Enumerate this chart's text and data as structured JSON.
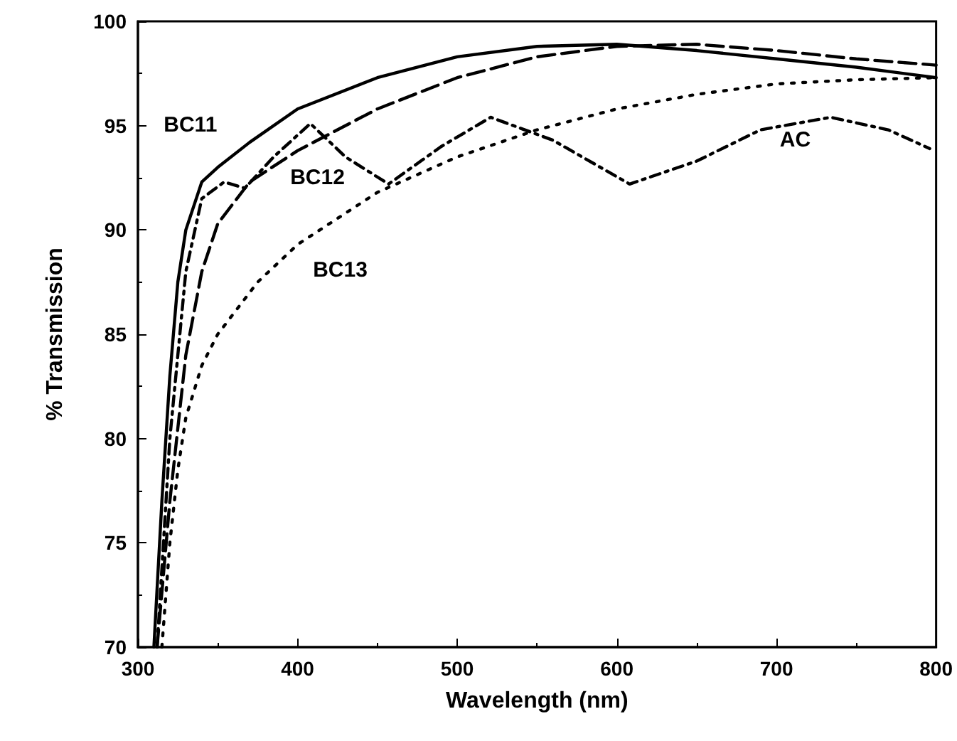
{
  "chart_data": {
    "type": "line",
    "xlabel": "Wavelength (nm)",
    "ylabel": "% Transmission",
    "xlim": [
      300,
      800
    ],
    "xticks": [
      300,
      400,
      500,
      600,
      700,
      800
    ],
    "ylim": [
      70,
      100
    ],
    "yticks": [
      70,
      75,
      80,
      85,
      90,
      95,
      100
    ],
    "grid": false,
    "marker": "none",
    "series": [
      {
        "name": "BC11",
        "color": "#000000",
        "line_style": "solid",
        "x": [
          310,
          315,
          320,
          325,
          330,
          340,
          350,
          370,
          400,
          450,
          500,
          550,
          600,
          650,
          700,
          750,
          800
        ],
        "values": [
          70,
          77,
          83,
          87.5,
          90,
          92.3,
          93,
          94.2,
          95.8,
          97.3,
          98.3,
          98.8,
          98.9,
          98.6,
          98.2,
          97.8,
          97.3
        ]
      },
      {
        "name": "BC12",
        "color": "#000000",
        "line_style": "dashed",
        "x": [
          312,
          320,
          330,
          340,
          350,
          370,
          400,
          450,
          500,
          550,
          600,
          650,
          700,
          750,
          800
        ],
        "values": [
          70,
          77,
          84,
          88,
          90.3,
          92.3,
          93.8,
          95.8,
          97.3,
          98.3,
          98.8,
          98.9,
          98.6,
          98.2,
          97.9
        ]
      },
      {
        "name": "AC",
        "color": "#000000",
        "line_style": "dashdot",
        "x": [
          312,
          320,
          330,
          340,
          354,
          367,
          385,
          408,
          430,
          457,
          490,
          521,
          560,
          608,
          650,
          690,
          734,
          770,
          796
        ],
        "values": [
          70,
          80,
          88,
          91.5,
          92.3,
          92,
          93.5,
          95.1,
          93.5,
          92.2,
          94,
          95.4,
          94.3,
          92.2,
          93.3,
          94.8,
          95.4,
          94.8,
          93.9
        ]
      },
      {
        "name": "BC13",
        "color": "#000000",
        "line_style": "dotted",
        "x": [
          315,
          320,
          325,
          330,
          340,
          350,
          375,
          400,
          450,
          500,
          550,
          600,
          650,
          700,
          750,
          800
        ],
        "values": [
          70,
          75,
          78.5,
          81,
          83.5,
          85,
          87.5,
          89.3,
          91.8,
          93.5,
          94.8,
          95.8,
          96.5,
          97,
          97.2,
          97.3
        ]
      }
    ]
  }
}
